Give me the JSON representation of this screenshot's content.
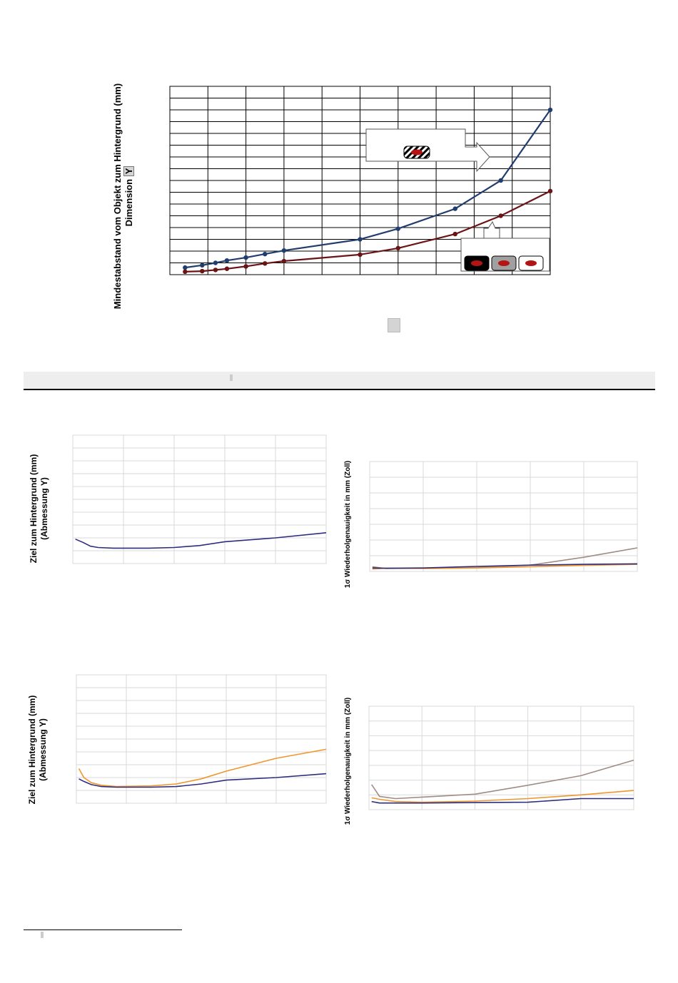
{
  "main_chart": {
    "ylabel_line1": "Mindestabstand vom Objekt zum Hintergrund (mm)",
    "ylabel_line2": "Dimension",
    "ylabel_badge": "Y"
  },
  "small_charts": {
    "ylabel_target": "Ziel zum Hintergrund (mm)",
    "ylabel_target_sub": "(Abmessung Y)",
    "ylabel_repeat": "1σ Wiederholgenauigkeit in mm (Zoll)"
  },
  "colors": {
    "navy": "#213d6e",
    "maroon": "#6b1416",
    "orange": "#f0962d",
    "taupe": "#a08c82",
    "indigo": "#2d2d7e",
    "grid": "#d9d9d9",
    "red_target": "#b41414"
  },
  "chart_data": [
    {
      "type": "line",
      "id": "main",
      "xlim": [
        0,
        10
      ],
      "ylim": [
        0,
        16
      ],
      "series": [
        {
          "color": "#213d6e",
          "x": [
            0.4,
            0.85,
            1.2,
            1.5,
            2.0,
            2.5,
            3.0,
            5.0,
            6.0,
            7.5,
            8.7,
            10.0
          ],
          "y": [
            0.6,
            0.8,
            1.0,
            1.2,
            1.45,
            1.75,
            2.05,
            3.0,
            3.9,
            5.6,
            8.0,
            14.0
          ]
        },
        {
          "color": "#6b1416",
          "x": [
            0.4,
            0.85,
            1.2,
            1.5,
            2.0,
            2.5,
            3.0,
            5.0,
            6.0,
            7.5,
            8.7,
            10.0
          ],
          "y": [
            0.25,
            0.3,
            0.4,
            0.5,
            0.7,
            0.95,
            1.15,
            1.7,
            2.25,
            3.45,
            5.0,
            7.1
          ]
        }
      ]
    },
    {
      "type": "line",
      "id": "left_top",
      "xlim": [
        0,
        5
      ],
      "ylim": [
        0,
        10
      ],
      "series": [
        {
          "color": "#2d2d7e",
          "x": [
            0.05,
            0.2,
            0.35,
            0.5,
            0.8,
            1.5,
            2.0,
            2.5,
            3.0,
            4.0,
            5.0
          ],
          "y": [
            1.9,
            1.65,
            1.35,
            1.25,
            1.2,
            1.2,
            1.25,
            1.4,
            1.7,
            2.0,
            2.4
          ]
        }
      ]
    },
    {
      "type": "line",
      "id": "right_top",
      "xlim": [
        0,
        5
      ],
      "ylim": [
        0,
        7
      ],
      "series": [
        {
          "color": "#a08c82",
          "x": [
            0.05,
            0.3,
            1.0,
            2.0,
            3.0,
            4.0,
            5.0
          ],
          "y": [
            0.3,
            0.18,
            0.2,
            0.25,
            0.4,
            0.9,
            1.5
          ]
        },
        {
          "color": "#f0962d",
          "x": [
            0.05,
            0.3,
            1.0,
            2.0,
            3.0,
            4.0,
            5.0
          ],
          "y": [
            0.15,
            0.2,
            0.18,
            0.22,
            0.3,
            0.38,
            0.45
          ]
        },
        {
          "color": "#2d2d7e",
          "x": [
            0.05,
            0.3,
            1.0,
            2.0,
            3.0,
            4.0,
            5.0
          ],
          "y": [
            0.22,
            0.2,
            0.22,
            0.32,
            0.4,
            0.45,
            0.48
          ]
        }
      ]
    },
    {
      "type": "line",
      "id": "left_bottom",
      "xlim": [
        0,
        5
      ],
      "ylim": [
        0,
        10
      ],
      "series": [
        {
          "color": "#f0962d",
          "x": [
            0.05,
            0.15,
            0.3,
            0.5,
            0.8,
            1.5,
            2.0,
            2.5,
            3.0,
            4.0,
            5.0
          ],
          "y": [
            2.7,
            2.0,
            1.6,
            1.4,
            1.3,
            1.35,
            1.5,
            1.9,
            2.5,
            3.5,
            4.2
          ]
        },
        {
          "color": "#2d2d7e",
          "x": [
            0.05,
            0.15,
            0.3,
            0.5,
            0.8,
            1.5,
            2.0,
            2.5,
            3.0,
            4.0,
            5.0
          ],
          "y": [
            1.9,
            1.7,
            1.45,
            1.3,
            1.25,
            1.25,
            1.3,
            1.5,
            1.8,
            2.0,
            2.3
          ]
        }
      ]
    },
    {
      "type": "line",
      "id": "right_bottom",
      "xlim": [
        0,
        5
      ],
      "ylim": [
        0,
        7
      ],
      "series": [
        {
          "color": "#a08c82",
          "x": [
            0.05,
            0.2,
            0.5,
            1.0,
            2.0,
            3.0,
            4.0,
            5.0
          ],
          "y": [
            1.7,
            0.9,
            0.75,
            0.85,
            1.05,
            1.65,
            2.3,
            3.35
          ]
        },
        {
          "color": "#f0962d",
          "x": [
            0.05,
            0.2,
            0.5,
            1.0,
            2.0,
            3.0,
            4.0,
            5.0
          ],
          "y": [
            0.8,
            0.7,
            0.55,
            0.5,
            0.58,
            0.75,
            1.0,
            1.3
          ]
        },
        {
          "color": "#2d2d7e",
          "x": [
            0.05,
            0.2,
            0.5,
            1.0,
            2.0,
            3.0,
            4.0,
            5.0
          ],
          "y": [
            0.55,
            0.45,
            0.45,
            0.45,
            0.48,
            0.5,
            0.75,
            0.75
          ]
        }
      ]
    }
  ]
}
